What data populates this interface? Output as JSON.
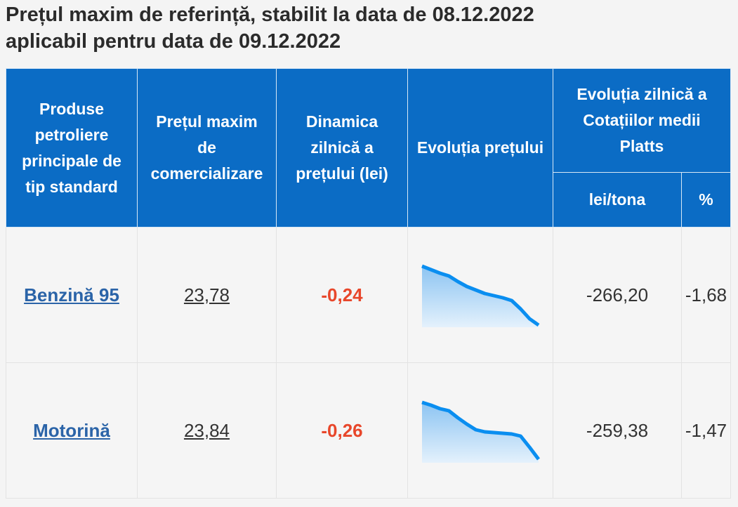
{
  "title_lines": [
    "Prețul maxim de referință, stabilit la data de 08.12.2022",
    "aplicabil pentru data de 09.12.2022"
  ],
  "table": {
    "header": {
      "product": "Produse petroliere principale de tip standard",
      "price": "Prețul maxim de comercializare",
      "dynamic": "Dinamica zilnică a prețului (lei)",
      "evolution": "Evoluția prețului",
      "platts": "Evoluția zilnică a Cotațiilor medii Platts",
      "platts_units": [
        "lei/tona",
        "%"
      ]
    },
    "rows": [
      {
        "product": "Benzină 95",
        "price": "23,78",
        "dynamic": "-0,24",
        "trend": [
          87,
          82,
          77,
          73,
          65,
          58,
          53,
          48,
          45,
          42,
          38,
          26,
          12,
          3
        ],
        "platts_lei": "-266,20",
        "platts_pct": "-1,68"
      },
      {
        "product": "Motorină",
        "price": "23,84",
        "dynamic": "-0,26",
        "trend": [
          86,
          82,
          77,
          74,
          64,
          55,
          47,
          44,
          43,
          42,
          41,
          38,
          22,
          5
        ],
        "platts_lei": "-259,38",
        "platts_pct": "-1,47"
      }
    ]
  }
}
